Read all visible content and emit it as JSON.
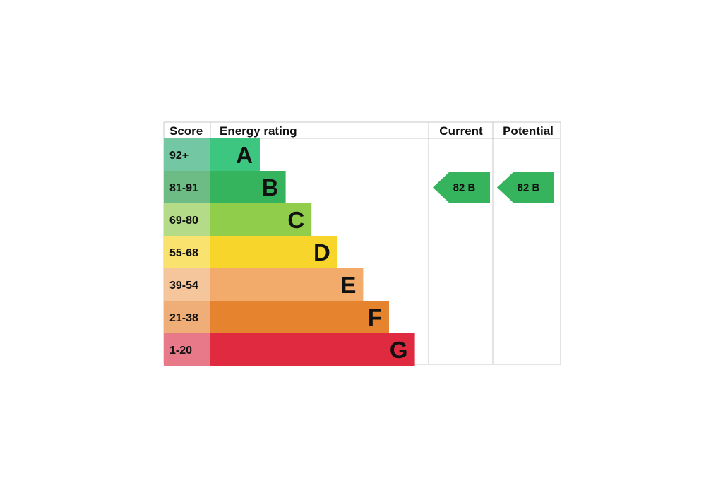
{
  "headers": {
    "score": "Score",
    "rating": "Energy rating",
    "current": "Current",
    "potential": "Potential"
  },
  "chart_data": {
    "type": "bar",
    "title": "",
    "categories": [
      "A",
      "B",
      "C",
      "D",
      "E",
      "F",
      "G"
    ],
    "score_ranges": [
      "92+",
      "81-91",
      "69-80",
      "55-68",
      "39-54",
      "21-38",
      "1-20"
    ],
    "band_colors": [
      "#3cc680",
      "#35b35d",
      "#8fcd4a",
      "#f8d52a",
      "#f2ab6b",
      "#e6832e",
      "#e02a40"
    ],
    "score_colors": [
      "#74c7a3",
      "#6dbc86",
      "#b4dc88",
      "#fae26f",
      "#f5c59b",
      "#efae77",
      "#e87989"
    ],
    "current": {
      "score": 82,
      "band": "B",
      "label": "82  B",
      "color": "#35b35d"
    },
    "potential": {
      "score": 82,
      "band": "B",
      "label": "82  B",
      "color": "#35b35d"
    }
  }
}
